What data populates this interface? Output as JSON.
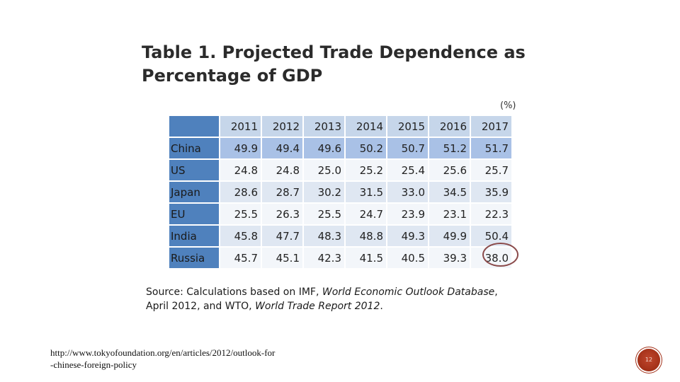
{
  "slide": {
    "title": "Table 1. Projected Trade Dependence as Percentage of GDP",
    "unit": "(%)",
    "source_prefix": "Source: Calculations based on IMF,",
    "source_weo": "World Economic Outlook Database",
    "source_mid": ", April 2012, and WTO,",
    "source_wtr": "World Trade Report 2012",
    "source_end": ".",
    "url": "http://www.tokyofoundation.org/en/articles/2012/outlook-for-chinese-foreign-policy",
    "slide_number": "12"
  },
  "table": {
    "columns": [
      "2011",
      "2012",
      "2013",
      "2014",
      "2015",
      "2016",
      "2017"
    ],
    "rows": [
      {
        "label": "China",
        "values": [
          "49.9",
          "49.4",
          "49.6",
          "50.2",
          "50.7",
          "51.2",
          "51.7"
        ]
      },
      {
        "label": "US",
        "values": [
          "24.8",
          "24.8",
          "25.0",
          "25.2",
          "25.4",
          "25.6",
          "25.7"
        ]
      },
      {
        "label": "Japan",
        "values": [
          "28.6",
          "28.7",
          "30.2",
          "31.5",
          "33.0",
          "34.5",
          "35.9"
        ]
      },
      {
        "label": "EU",
        "values": [
          "25.5",
          "26.3",
          "25.5",
          "24.7",
          "23.9",
          "23.1",
          "22.3"
        ]
      },
      {
        "label": "India",
        "values": [
          "45.8",
          "47.7",
          "48.3",
          "48.8",
          "49.3",
          "49.9",
          "50.4"
        ]
      },
      {
        "label": "Russia",
        "values": [
          "45.7",
          "45.1",
          "42.3",
          "41.5",
          "40.5",
          "39.3",
          "38.0"
        ]
      }
    ]
  },
  "colors": {
    "header_dark": "#4f81bd",
    "header_light": "#c6d6ea",
    "highlight_circle": "#8a4a4a",
    "slide_badge": "#a23018"
  }
}
